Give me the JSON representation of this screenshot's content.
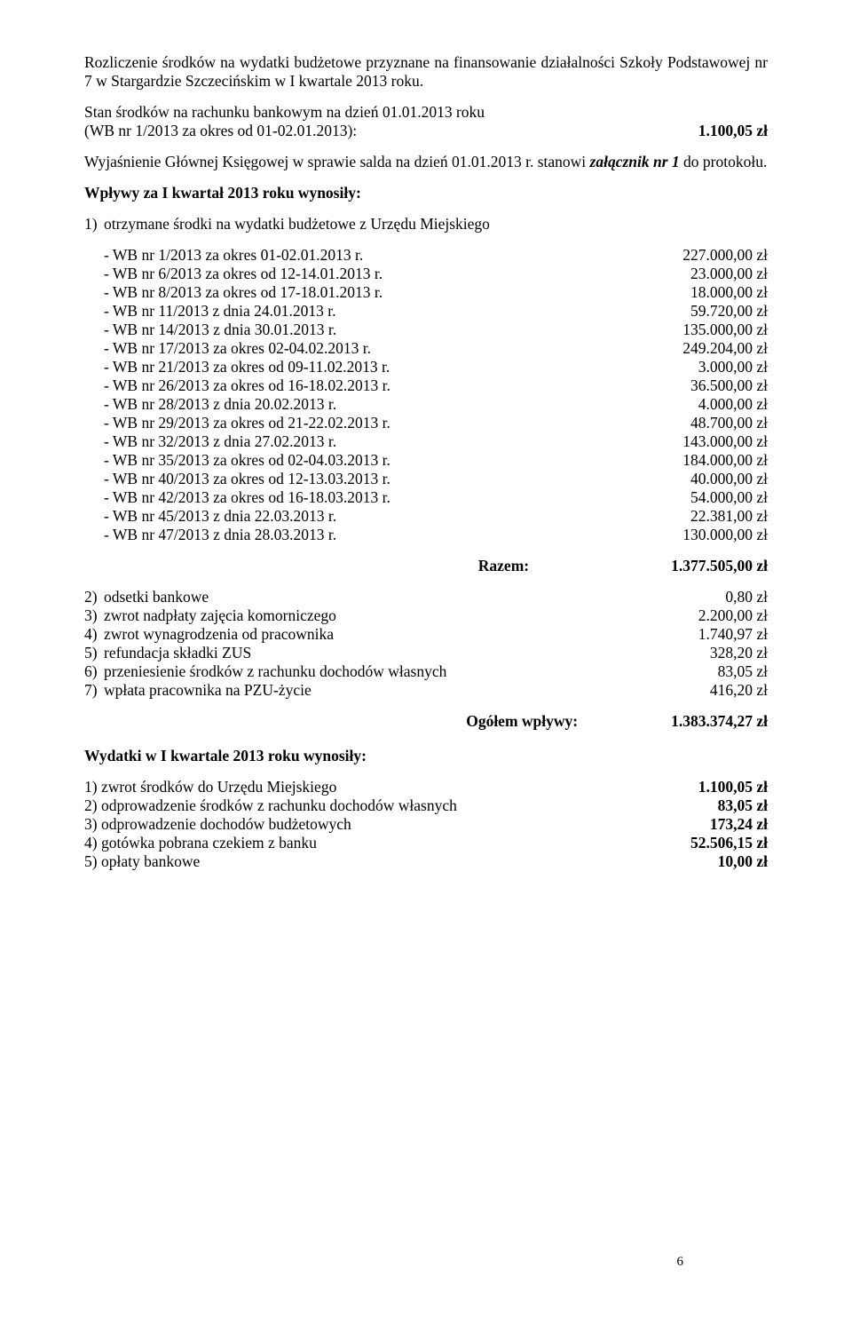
{
  "title": "Rozliczenie środków na wydatki budżetowe przyznane na finansowanie działalności Szkoły Podstawowej nr 7 w Stargardzie Szczecińskim w I kwartale 2013 roku.",
  "stan_line1": "Stan środków na rachunku bankowym na dzień 01.01.2013 roku",
  "wb_label": "(WB nr 1/2013 za okres od 01-02.01.2013):",
  "wb_amount": "1.100,05 zł",
  "wyjas_prefix": "Wyjaśnienie Głównej Księgowej w sprawie salda na dzień 01.01.2013 r. stanowi ",
  "wyjas_italic": "załącznik nr 1",
  "wyjas_suffix": " do protokołu.",
  "wplywy_title": "Wpływy za I kwartał 2013 roku wynosiły:",
  "item1_label": "otrzymane środki na wydatki budżetowe z Urzędu Miejskiego",
  "wb_items": [
    {
      "label": "- WB nr 1/2013 za okres 01-02.01.2013 r.",
      "amount": "227.000,00 zł"
    },
    {
      "label": "- WB nr 6/2013 za okres od 12-14.01.2013 r.",
      "amount": "23.000,00 zł"
    },
    {
      "label": "- WB nr 8/2013 za okres od 17-18.01.2013 r.",
      "amount": "18.000,00 zł"
    },
    {
      "label": "- WB nr 11/2013 z dnia 24.01.2013 r.",
      "amount": "59.720,00 zł"
    },
    {
      "label": "- WB nr 14/2013 z dnia 30.01.2013 r.",
      "amount": "135.000,00 zł"
    },
    {
      "label": "- WB nr 17/2013 za okres 02-04.02.2013 r.",
      "amount": "249.204,00 zł"
    },
    {
      "label": "- WB nr 21/2013 za okres od 09-11.02.2013 r.",
      "amount": "3.000,00 zł"
    },
    {
      "label": "- WB nr 26/2013 za okres od 16-18.02.2013 r.",
      "amount": "36.500,00 zł"
    },
    {
      "label": "- WB nr 28/2013 z dnia 20.02.2013 r.",
      "amount": "4.000,00 zł"
    },
    {
      "label": "- WB nr 29/2013 za okres od 21-22.02.2013 r.",
      "amount": "48.700,00 zł"
    },
    {
      "label": "- WB nr 32/2013 z dnia 27.02.2013 r.",
      "amount": "143.000,00 zł"
    },
    {
      "label": "- WB nr 35/2013 za okres od 02-04.03.2013 r.",
      "amount": "184.000,00 zł"
    },
    {
      "label": "- WB nr 40/2013 za okres od 12-13.03.2013 r.",
      "amount": "40.000,00 zł"
    },
    {
      "label": "- WB nr 42/2013 za okres od 16-18.03.2013 r.",
      "amount": "54.000,00 zł"
    },
    {
      "label": "- WB nr 45/2013 z dnia 22.03.2013 r.",
      "amount": "22.381,00 zł"
    },
    {
      "label": "- WB nr 47/2013 z dnia 28.03.2013 r.",
      "amount": "130.000,00 zł"
    }
  ],
  "razem_label": "Razem:",
  "razem_amount": "1.377.505,00 zł",
  "other_items": [
    {
      "num": "2)",
      "label": "odsetki bankowe",
      "amount": "0,80 zł"
    },
    {
      "num": "3)",
      "label": "zwrot nadpłaty zajęcia komorniczego",
      "amount": "2.200,00 zł"
    },
    {
      "num": "4)",
      "label": "zwrot wynagrodzenia od pracownika",
      "amount": "1.740,97 zł"
    },
    {
      "num": "5)",
      "label": "refundacja składki ZUS",
      "amount": "328,20 zł"
    },
    {
      "num": "6)",
      "label": "przeniesienie środków z rachunku dochodów własnych",
      "amount": "83,05 zł"
    },
    {
      "num": "7)",
      "label": "wpłata pracownika na PZU-życie",
      "amount": "416,20 zł"
    }
  ],
  "ogolem_label": "Ogółem wpływy:",
  "ogolem_amount": "1.383.374,27 zł",
  "wydatki_title": "Wydatki w I kwartale 2013 roku wynosiły:",
  "wydatki_items": [
    {
      "label": "1) zwrot środków do Urzędu Miejskiego",
      "amount": "1.100,05 zł"
    },
    {
      "label": "2) odprowadzenie środków z rachunku dochodów własnych",
      "amount": "83,05 zł"
    },
    {
      "label": "3) odprowadzenie dochodów budżetowych",
      "amount": "173,24 zł"
    },
    {
      "label": "4) gotówka pobrana czekiem z banku",
      "amount": "52.506,15 zł"
    },
    {
      "label": "5) opłaty bankowe",
      "amount": "10,00 zł"
    }
  ],
  "page_number": "6"
}
